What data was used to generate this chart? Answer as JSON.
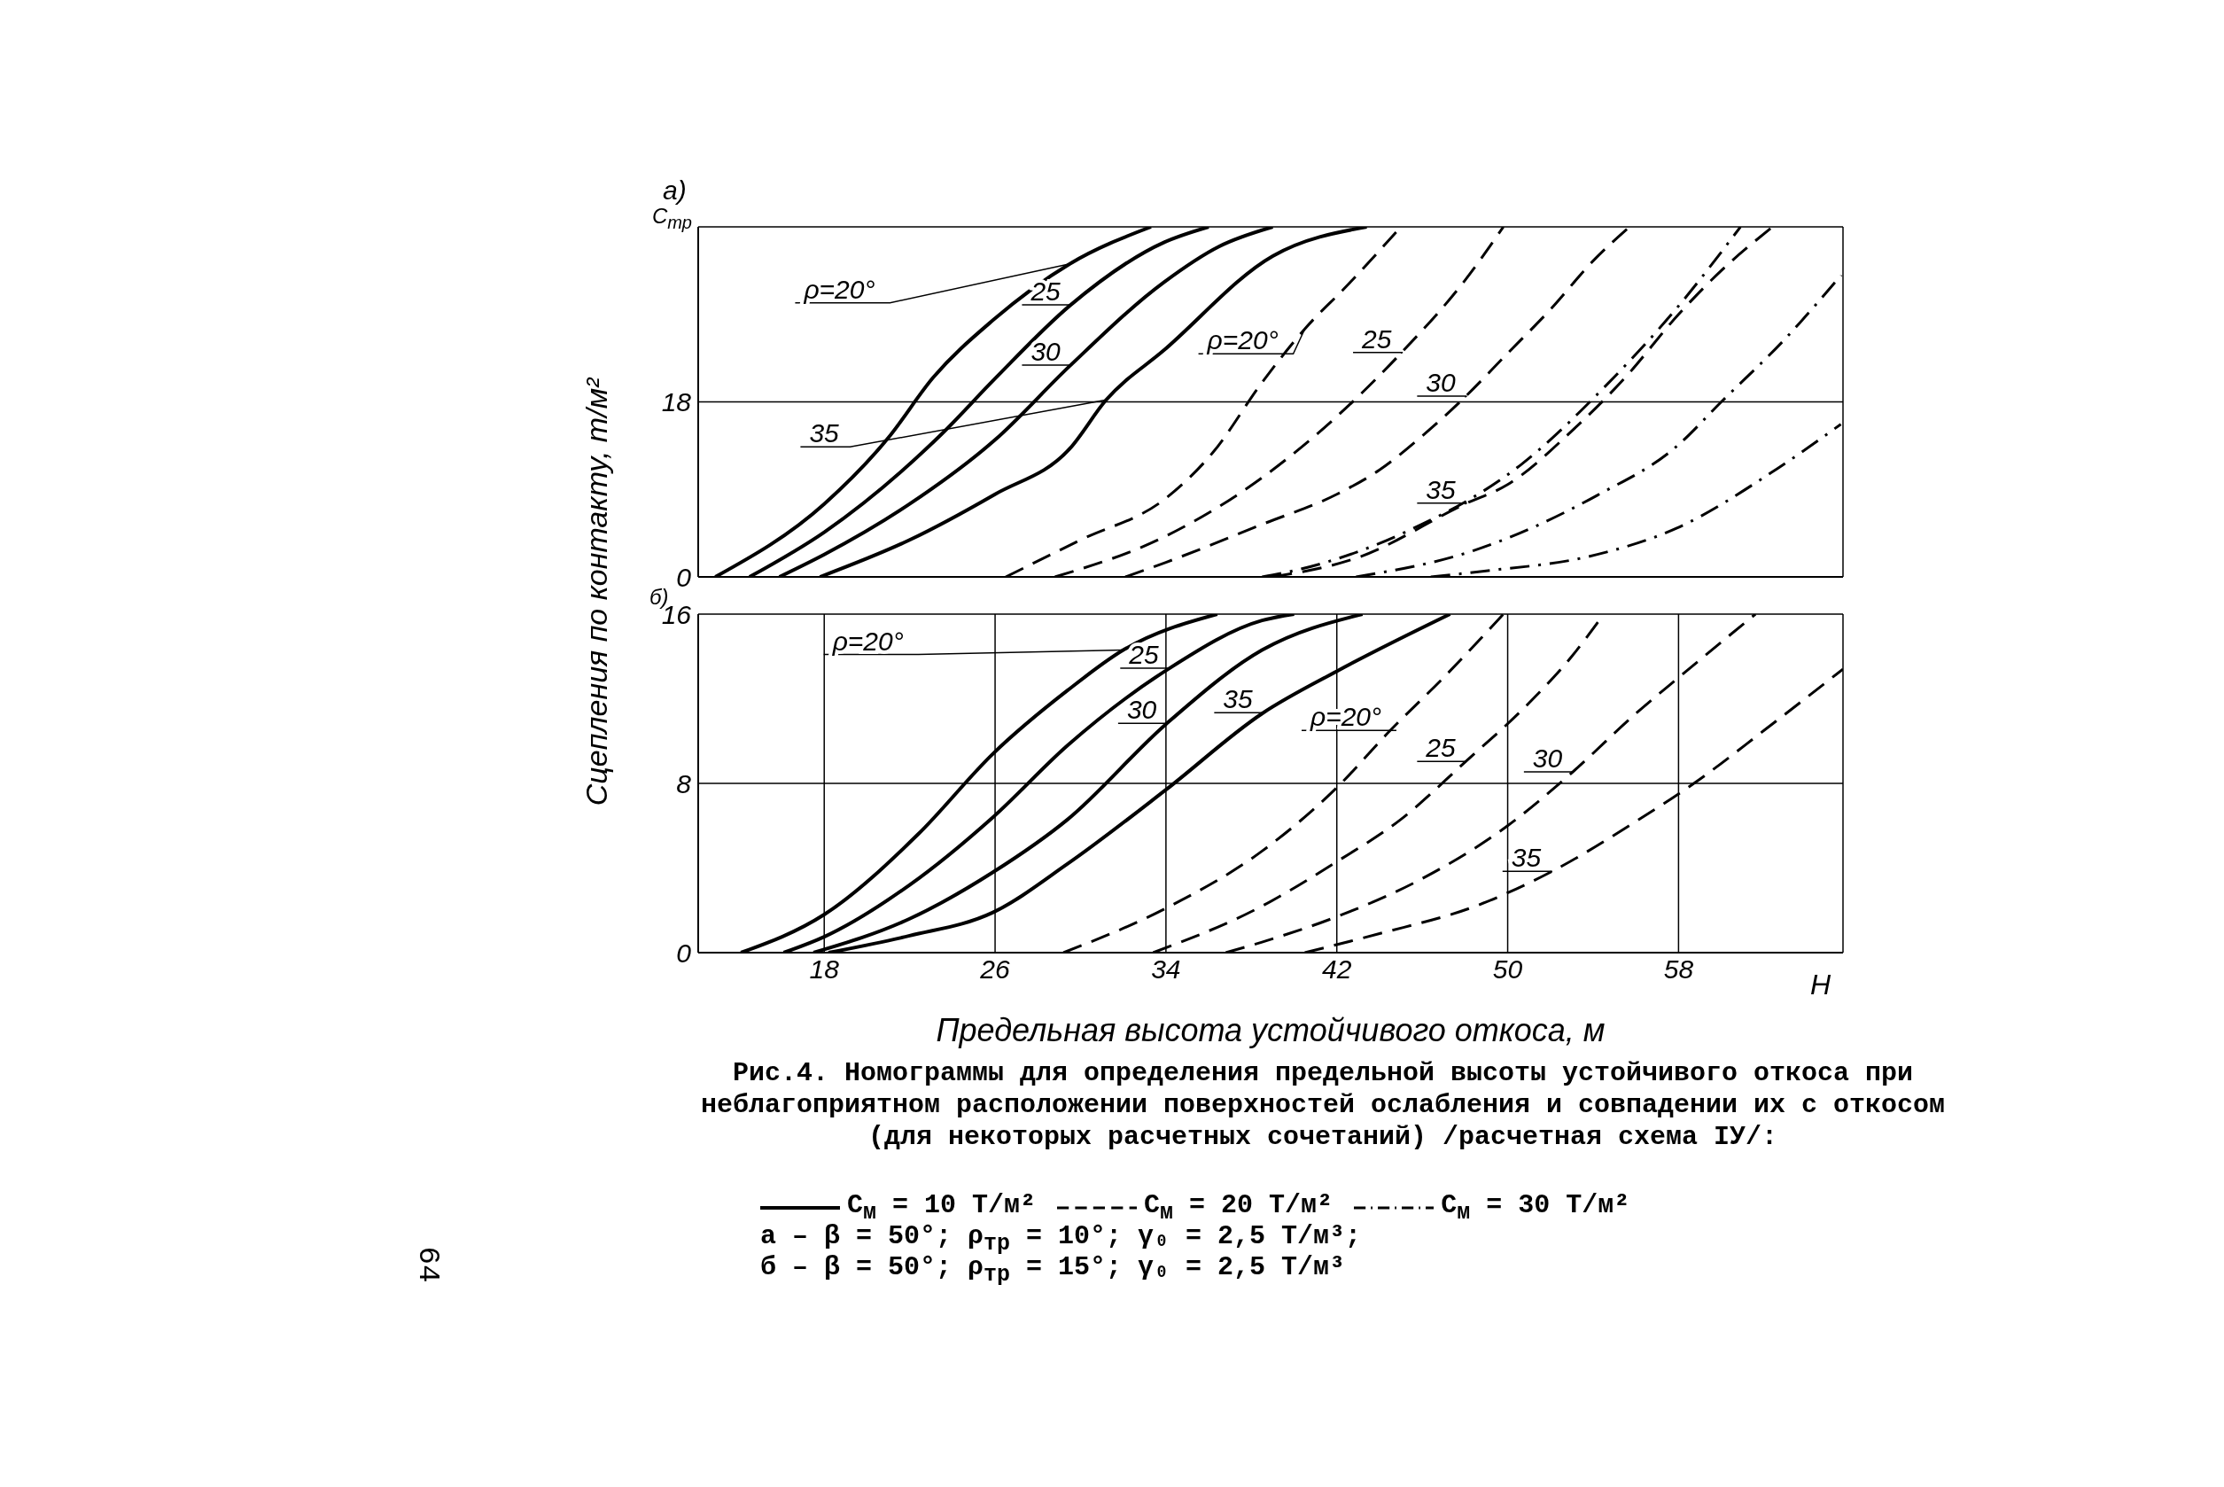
{
  "chart_data": [
    {
      "type": "line",
      "title": "Рис.4. Номограммы для определения предельной высоты устойчивого откоса при неблагоприятном расположении поверхностей ослабления и совпадении их с откосом (для некоторых расчетных сочетаний) /расчетная схема IУ/:",
      "ylabel": "Сцепления по контакту, т/м²",
      "xlim": [
        12.1,
        65.7
      ],
      "xticks": [
        18,
        26,
        34,
        42,
        50,
        58
      ],
      "ylim": [
        0,
        36
      ],
      "yticks": [
        0,
        18
      ],
      "grid": true,
      "legend": "bottom",
      "tick_labels": "y",
      "marker": "none",
      "annotations": [
        "а)",
        "C$_{тр}$",
        "а – β = 50°; ρ$_{тр}$ = 10°; γ₀ = 2,5 Т/м³;",
        "б – β = 50°; ρ$_{тр}$ = 15°; γ₀ = 2,5 Т/м³",
        "64",
        {
          "text": "ρ=20°",
          "x": 29.5,
          "y": 32.2
        },
        {
          "text": "25",
          "x": 29.5,
          "y": 27.9
        },
        {
          "text": "30",
          "x": 29.5,
          "y": 21.7
        },
        {
          "text": "35",
          "x": 31.2,
          "y": 18.2
        },
        {
          "text": "ρ=20°",
          "x": 40.5,
          "y": 25.5
        },
        {
          "text": "25",
          "x": 45,
          "y": 23
        },
        {
          "text": "30",
          "x": 48,
          "y": 18.5
        },
        {
          "text": "35",
          "x": 48,
          "y": 7.5
        }
      ],
      "series": [
        {
          "name": "C$_{м}$ = 10 Т/м²",
          "color": "#000000",
          "line_style": "solid",
          "x": [
            12.9,
            18,
            21,
            23.1,
            25.9,
            29.5,
            33.3
          ],
          "values": [
            0,
            7.5,
            14.3,
            20.5,
            26.4,
            32.2,
            36
          ]
        },
        {
          "color": "#000000",
          "line_style": "solid",
          "x": [
            14.5,
            18,
            23.5,
            26,
            29.5,
            33.9,
            36
          ],
          "values": [
            0,
            4.6,
            14.7,
            20.4,
            27.9,
            34.4,
            36
          ]
        },
        {
          "color": "#000000",
          "line_style": "solid",
          "x": [
            15.9,
            18,
            22,
            26,
            29.5,
            33.9,
            36.5,
            39
          ],
          "values": [
            0,
            2.3,
            7.5,
            14.1,
            21.7,
            30.3,
            34,
            36
          ]
        },
        {
          "color": "#000000",
          "line_style": "solid",
          "x": [
            17.8,
            22,
            26,
            29.5,
            31.2,
            33.9,
            39,
            43.4
          ],
          "values": [
            0,
            3.8,
            8.5,
            13.2,
            18.2,
            23.3,
            33,
            36
          ]
        },
        {
          "name": "C$_{м}$ = 20 Т/м²",
          "color": "#000000",
          "line_style": "dashed",
          "x": [
            26.5,
            30,
            34,
            36.2,
            38.5,
            40.5,
            42.5,
            45
          ],
          "values": [
            0,
            3.8,
            8.1,
            12.8,
            20,
            25.5,
            30,
            36
          ]
        },
        {
          "color": "#000000",
          "line_style": "dashed",
          "x": [
            28.8,
            34,
            38.5,
            42,
            45,
            48,
            49.8
          ],
          "values": [
            0,
            4.2,
            10.2,
            16.5,
            23,
            30.5,
            36
          ]
        },
        {
          "color": "#000000",
          "line_style": "dashed",
          "x": [
            32.1,
            34,
            38.5,
            42,
            44,
            46,
            48,
            50,
            52,
            54,
            55.7
          ],
          "values": [
            0,
            1.5,
            5.4,
            8.5,
            11,
            14.5,
            18.5,
            23,
            27.5,
            32.5,
            36
          ]
        },
        {
          "color": "#000000",
          "line_style": "dashed",
          "x": [
            39,
            43,
            48,
            50,
            53,
            55.5,
            58,
            60,
            62.4
          ],
          "values": [
            0,
            2,
            7.5,
            9.5,
            15,
            20.5,
            27,
            31.5,
            36
          ]
        },
        {
          "name": "C$_{м}$ = 30 Т/м²",
          "color": "#000000",
          "line_style": "dashdot",
          "x": [
            38.5,
            40.3,
            45.2,
            50.6,
            54.7,
            57.9,
            60.9
          ],
          "values": [
            0,
            0.8,
            4.6,
            11.5,
            19.9,
            27.6,
            36
          ]
        },
        {
          "color": "#000000",
          "line_style": "dashdot",
          "x": [
            42.9,
            48.4,
            54.2,
            57.9,
            60,
            63,
            65.6
          ],
          "values": [
            0,
            2.7,
            8.4,
            13.4,
            18,
            24.5,
            31
          ]
        },
        {
          "color": "#000000",
          "line_style": "dashdot",
          "x": [
            46.4,
            48.9,
            53.8,
            57.9,
            62.6,
            65.6
          ],
          "values": [
            0,
            0.6,
            2.1,
            5,
            11.1,
            15.7
          ]
        }
      ]
    },
    {
      "type": "line",
      "xlabel": "Предельная высота устойчивого откоса, м",
      "xlim": [
        12.1,
        65.7
      ],
      "xticks": [
        18,
        26,
        34,
        42,
        50,
        58
      ],
      "ylim": [
        0,
        16
      ],
      "yticks": [
        0,
        8,
        16
      ],
      "grid": true,
      "marker": "none",
      "annotations": [
        "б)",
        "H",
        {
          "text": "ρ=20°",
          "x": 32,
          "y": 14.3
        },
        {
          "text": "25",
          "x": 34.1,
          "y": 13.4
        },
        {
          "text": "30",
          "x": 34,
          "y": 10.8
        },
        {
          "text": "35",
          "x": 38.5,
          "y": 11.3
        },
        {
          "text": "ρ=20°",
          "x": 44.5,
          "y": 10.5
        },
        {
          "text": "25",
          "x": 48,
          "y": 9
        },
        {
          "text": "30",
          "x": 53,
          "y": 8.5
        },
        {
          "text": "35",
          "x": 52,
          "y": 3.8
        }
      ],
      "series": [
        {
          "color": "#000000",
          "line_style": "solid",
          "x": [
            14.1,
            18,
            22.4,
            25.9,
            29.4,
            32,
            36.4
          ],
          "values": [
            0,
            1.8,
            5.6,
            9.4,
            12.4,
            14.3,
            16
          ]
        },
        {
          "color": "#000000",
          "line_style": "solid",
          "x": [
            16.1,
            18,
            22,
            25.9,
            29.4,
            34.1,
            38.5,
            40
          ],
          "values": [
            0,
            0.75,
            3.2,
            6.4,
            9.8,
            13.4,
            15.7,
            16
          ]
        },
        {
          "color": "#000000",
          "line_style": "solid",
          "x": [
            17.5,
            22,
            25.9,
            29.4,
            34,
            38.5,
            43.2
          ],
          "values": [
            0,
            1.6,
            3.8,
            6.3,
            10.8,
            14.3,
            16
          ]
        },
        {
          "color": "#000000",
          "line_style": "solid",
          "x": [
            18.2,
            22,
            25.9,
            29.4,
            34,
            38.5,
            42,
            47.3
          ],
          "values": [
            0,
            0.8,
            1.9,
            4.2,
            7.7,
            11.3,
            13.3,
            16
          ]
        },
        {
          "color": "#000000",
          "line_style": "dashed",
          "x": [
            29.2,
            34,
            38.5,
            42,
            44.5,
            47,
            49.8
          ],
          "values": [
            0,
            2.1,
            4.8,
            7.8,
            10.5,
            13,
            16
          ]
        },
        {
          "color": "#000000",
          "line_style": "dashed",
          "x": [
            33.4,
            38.5,
            42,
            45,
            48,
            51,
            53,
            54.5
          ],
          "values": [
            0,
            2.2,
            4.3,
            6.3,
            9,
            11.8,
            14,
            16
          ]
        },
        {
          "color": "#000000",
          "line_style": "dashed",
          "x": [
            36.8,
            38.5,
            42,
            46,
            50,
            53,
            56,
            58,
            61.6
          ],
          "values": [
            0,
            0.5,
            1.7,
            3.5,
            6,
            8.5,
            11.3,
            13,
            16
          ]
        },
        {
          "color": "#000000",
          "line_style": "dashed",
          "x": [
            40.5,
            44,
            48.5,
            52,
            56,
            59,
            62,
            65.7
          ],
          "values": [
            0,
            0.9,
            2.2,
            3.8,
            6.2,
            8.2,
            10.5,
            13.4
          ]
        }
      ]
    }
  ]
}
